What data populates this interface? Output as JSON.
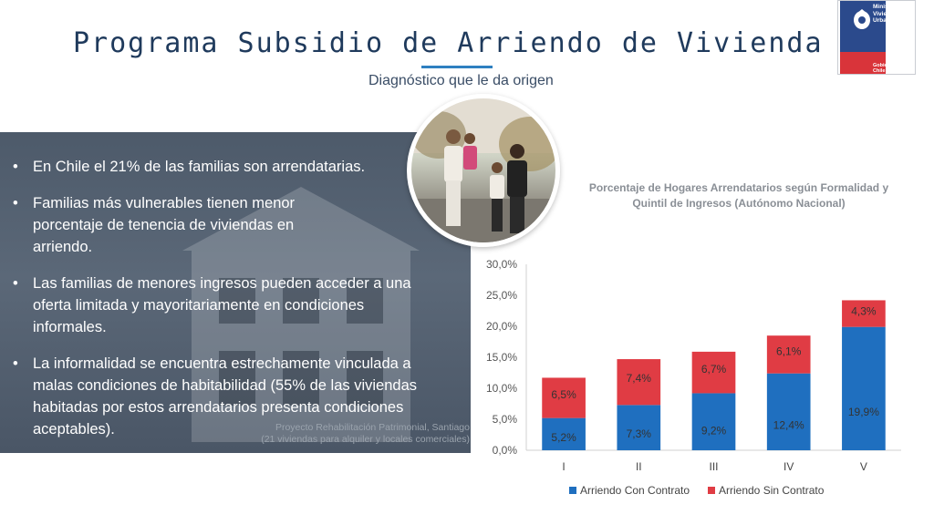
{
  "header": {
    "title": "Programa Subsidio de Arriendo de Vivienda",
    "subtitle": "Diagnóstico que le da origen"
  },
  "logo": {
    "ministry": "Ministerio de Vivienda y Urbanismo",
    "government": "Gobierno de Chile",
    "colors": {
      "blue": "#2b4a8c",
      "red": "#d9343a"
    }
  },
  "left_panel": {
    "bullets": [
      "En Chile el 21%  de las familias son arrendatarias.",
      "Familias más vulnerables tienen menor porcentaje de tenencia de viviendas en arriendo.",
      "Las familias de menores ingresos pueden acceder a una oferta limitada y mayoritariamente en condiciones informales.",
      "La informalidad se encuentra estrechamente vinculada a malas condiciones de habitabilidad (55% de las viviendas habitadas por estos arrendatarios presenta condiciones aceptables)."
    ],
    "photo_caption_1": "Proyecto Rehabilitación Patrimonial, Santiago",
    "photo_caption_2": "(21 viviendas para alquiler y locales comerciales)"
  },
  "chart_data": {
    "type": "bar",
    "stacked": true,
    "title": "Porcentaje de Hogares Arrendatarios según Formalidad y Quintil de Ingresos (Autónomo Nacional)",
    "categories": [
      "I",
      "II",
      "III",
      "IV",
      "V"
    ],
    "series": [
      {
        "name": "Arriendo Con Contrato",
        "values": [
          5.2,
          7.3,
          9.2,
          12.4,
          19.9
        ],
        "labels": [
          "5,2%",
          "7,3%",
          "9,2%",
          "12,4%",
          "19,9%"
        ],
        "color": "#1f6fbf"
      },
      {
        "name": "Arriendo Sin Contrato",
        "values": [
          6.5,
          7.4,
          6.7,
          6.1,
          4.3
        ],
        "labels": [
          "6,5%",
          "7,4%",
          "6,7%",
          "6,1%",
          "4,3%"
        ],
        "color": "#e03c44"
      }
    ],
    "ylim": [
      0,
      30
    ],
    "yticks": [
      0,
      5,
      10,
      15,
      20,
      25,
      30
    ],
    "ytick_labels": [
      "0,0%",
      "5,0%",
      "10,0%",
      "15,0%",
      "20,0%",
      "25,0%",
      "30,0%"
    ],
    "legend_position": "bottom",
    "grid": false
  }
}
